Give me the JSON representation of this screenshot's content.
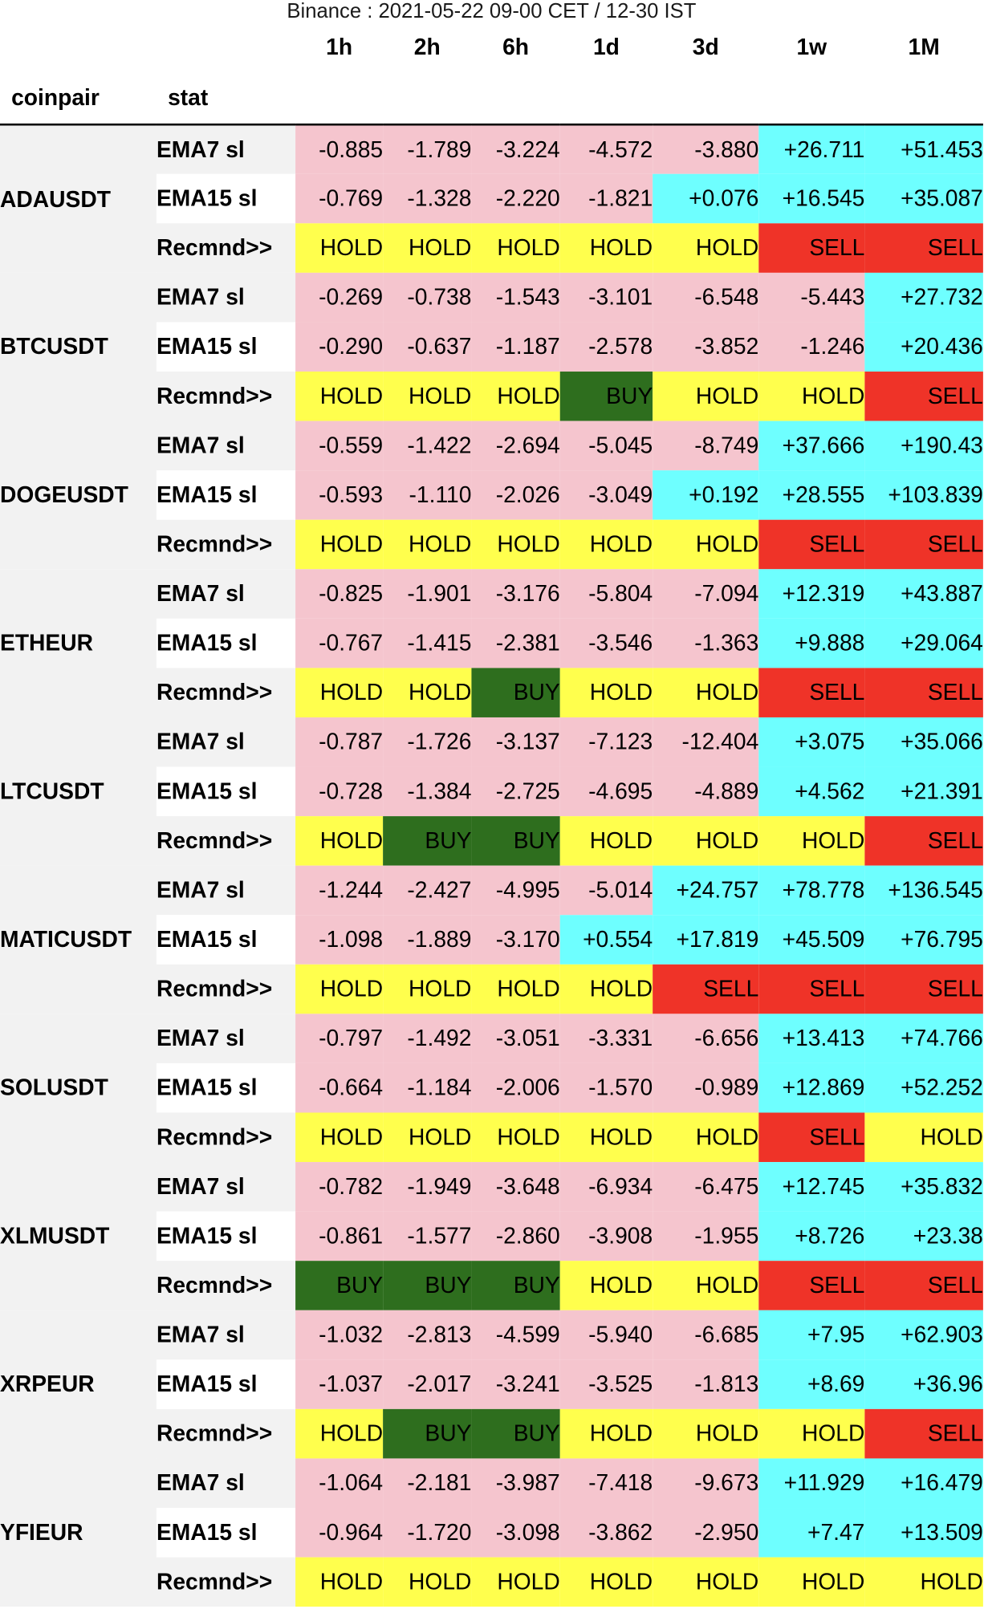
{
  "title": "Binance : 2021-05-22 09-00 CET / 12-30 IST",
  "periods": [
    "1h",
    "2h",
    "6h",
    "1d",
    "3d",
    "1w",
    "1M"
  ],
  "col_coinpair": "coinpair",
  "col_stat": "stat",
  "stat_labels": [
    "EMA7 sl",
    "EMA15 sl",
    "Recmnd>>"
  ],
  "colors": {
    "negative": "#f5c5ce",
    "positive": "#6effff",
    "HOLD": "#ffff4d",
    "BUY": "#2e6e1e",
    "SELL": "#ef3328"
  },
  "coins": [
    {
      "name": "ADAUSDT",
      "ema7": [
        "-0.885",
        "-1.789",
        "-3.224",
        "-4.572",
        "-3.880",
        "+26.711",
        "+51.453"
      ],
      "ema15": [
        "-0.769",
        "-1.328",
        "-2.220",
        "-1.821",
        "+0.076",
        "+16.545",
        "+35.087"
      ],
      "rec": [
        "HOLD",
        "HOLD",
        "HOLD",
        "HOLD",
        "HOLD",
        "SELL",
        "SELL"
      ]
    },
    {
      "name": "BTCUSDT",
      "ema7": [
        "-0.269",
        "-0.738",
        "-1.543",
        "-3.101",
        "-6.548",
        "-5.443",
        "+27.732"
      ],
      "ema15": [
        "-0.290",
        "-0.637",
        "-1.187",
        "-2.578",
        "-3.852",
        "-1.246",
        "+20.436"
      ],
      "rec": [
        "HOLD",
        "HOLD",
        "HOLD",
        "BUY",
        "HOLD",
        "HOLD",
        "SELL"
      ]
    },
    {
      "name": "DOGEUSDT",
      "ema7": [
        "-0.559",
        "-1.422",
        "-2.694",
        "-5.045",
        "-8.749",
        "+37.666",
        "+190.43"
      ],
      "ema15": [
        "-0.593",
        "-1.110",
        "-2.026",
        "-3.049",
        "+0.192",
        "+28.555",
        "+103.839"
      ],
      "rec": [
        "HOLD",
        "HOLD",
        "HOLD",
        "HOLD",
        "HOLD",
        "SELL",
        "SELL"
      ]
    },
    {
      "name": "ETHEUR",
      "ema7": [
        "-0.825",
        "-1.901",
        "-3.176",
        "-5.804",
        "-7.094",
        "+12.319",
        "+43.887"
      ],
      "ema15": [
        "-0.767",
        "-1.415",
        "-2.381",
        "-3.546",
        "-1.363",
        "+9.888",
        "+29.064"
      ],
      "rec": [
        "HOLD",
        "HOLD",
        "BUY",
        "HOLD",
        "HOLD",
        "SELL",
        "SELL"
      ]
    },
    {
      "name": "LTCUSDT",
      "ema7": [
        "-0.787",
        "-1.726",
        "-3.137",
        "-7.123",
        "-12.404",
        "+3.075",
        "+35.066"
      ],
      "ema15": [
        "-0.728",
        "-1.384",
        "-2.725",
        "-4.695",
        "-4.889",
        "+4.562",
        "+21.391"
      ],
      "rec": [
        "HOLD",
        "BUY",
        "BUY",
        "HOLD",
        "HOLD",
        "HOLD",
        "SELL"
      ]
    },
    {
      "name": "MATICUSDT",
      "ema7": [
        "-1.244",
        "-2.427",
        "-4.995",
        "-5.014",
        "+24.757",
        "+78.778",
        "+136.545"
      ],
      "ema15": [
        "-1.098",
        "-1.889",
        "-3.170",
        "+0.554",
        "+17.819",
        "+45.509",
        "+76.795"
      ],
      "rec": [
        "HOLD",
        "HOLD",
        "HOLD",
        "HOLD",
        "SELL",
        "SELL",
        "SELL"
      ]
    },
    {
      "name": "SOLUSDT",
      "ema7": [
        "-0.797",
        "-1.492",
        "-3.051",
        "-3.331",
        "-6.656",
        "+13.413",
        "+74.766"
      ],
      "ema15": [
        "-0.664",
        "-1.184",
        "-2.006",
        "-1.570",
        "-0.989",
        "+12.869",
        "+52.252"
      ],
      "rec": [
        "HOLD",
        "HOLD",
        "HOLD",
        "HOLD",
        "HOLD",
        "SELL",
        "HOLD"
      ]
    },
    {
      "name": "XLMUSDT",
      "ema7": [
        "-0.782",
        "-1.949",
        "-3.648",
        "-6.934",
        "-6.475",
        "+12.745",
        "+35.832"
      ],
      "ema15": [
        "-0.861",
        "-1.577",
        "-2.860",
        "-3.908",
        "-1.955",
        "+8.726",
        "+23.38"
      ],
      "rec": [
        "BUY",
        "BUY",
        "BUY",
        "HOLD",
        "HOLD",
        "SELL",
        "SELL"
      ]
    },
    {
      "name": "XRPEUR",
      "ema7": [
        "-1.032",
        "-2.813",
        "-4.599",
        "-5.940",
        "-6.685",
        "+7.95",
        "+62.903"
      ],
      "ema15": [
        "-1.037",
        "-2.017",
        "-3.241",
        "-3.525",
        "-1.813",
        "+8.69",
        "+36.96"
      ],
      "rec": [
        "HOLD",
        "BUY",
        "BUY",
        "HOLD",
        "HOLD",
        "HOLD",
        "SELL"
      ]
    },
    {
      "name": "YFIEUR",
      "ema7": [
        "-1.064",
        "-2.181",
        "-3.987",
        "-7.418",
        "-9.673",
        "+11.929",
        "+16.479"
      ],
      "ema15": [
        "-0.964",
        "-1.720",
        "-3.098",
        "-3.862",
        "-2.950",
        "+7.47",
        "+13.509"
      ],
      "rec": [
        "HOLD",
        "HOLD",
        "HOLD",
        "HOLD",
        "HOLD",
        "HOLD",
        "HOLD"
      ]
    }
  ]
}
